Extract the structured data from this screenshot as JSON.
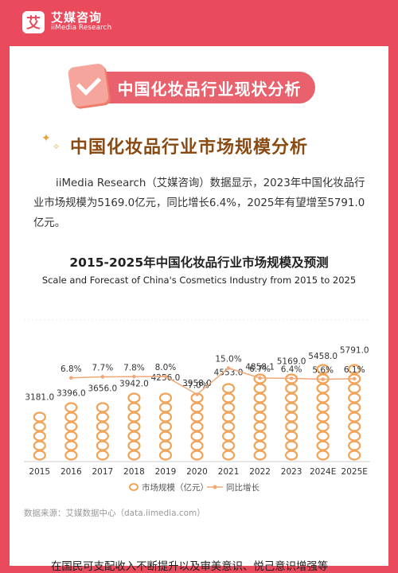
{
  "brand": {
    "name_cn": "艾媒咨询",
    "name_en": "iiMedia Research",
    "mark": "艾"
  },
  "section_banner": "中国化妆品行业现状分析",
  "heading": "中国化妆品行业市场规模分析",
  "paragraph": "iiMedia Research（艾媒咨询）数据显示，2023年中国化妆品行业市场规模为5169.0亿元，同比增长6.4%，2025年有望增至5791.0亿元。",
  "source": "数据来源：艾媒数据中心（data.iimedia.com）",
  "bottom_text": "在国民可支配收入不断提升以及审美意识、悦己意识增强等",
  "colors": {
    "brand_red": "#e94a5c",
    "bar": "#f0a45a",
    "line": "#f0a878",
    "heading": "#8a4a12"
  },
  "chart_data": {
    "type": "bar",
    "title": "2015-2025年中国化妆品行业市场规模及预测",
    "subtitle": "Scale and Forecast of China's Cosmetics Industry from 2015 to 2025",
    "categories": [
      "2015",
      "2016",
      "2017",
      "2018",
      "2019",
      "2020",
      "2021",
      "2022",
      "2023",
      "2024E",
      "2025E"
    ],
    "series": [
      {
        "name": "市场规模（亿元）",
        "type": "bar",
        "values": [
          3181.0,
          3396.0,
          3656.0,
          3942.0,
          4256.0,
          3958.0,
          4553.0,
          4858.1,
          5169.0,
          5458.0,
          5791.0
        ]
      },
      {
        "name": "同比增长",
        "type": "line",
        "values": [
          null,
          6.8,
          7.7,
          7.8,
          8.0,
          -7.0,
          15.0,
          6.7,
          6.4,
          5.6,
          6.1
        ]
      }
    ],
    "value_labels": [
      "3181.0",
      "3396.0",
      "3656.0",
      "3942.0",
      "4256.0",
      "3958.0",
      "4553.0",
      "4858.1",
      "5169.0",
      "5458.0",
      "5791.0"
    ],
    "growth_labels": [
      "",
      "6.8%",
      "7.7%",
      "7.8%",
      "8.0%",
      "-7.0%",
      "15.0%",
      "6.7%",
      "6.4%",
      "5.6%",
      "6.1%"
    ],
    "ylim_bar": [
      0,
      9000
    ],
    "ylim_line": [
      -20,
      40
    ],
    "grid": false,
    "legend": "bottom"
  }
}
